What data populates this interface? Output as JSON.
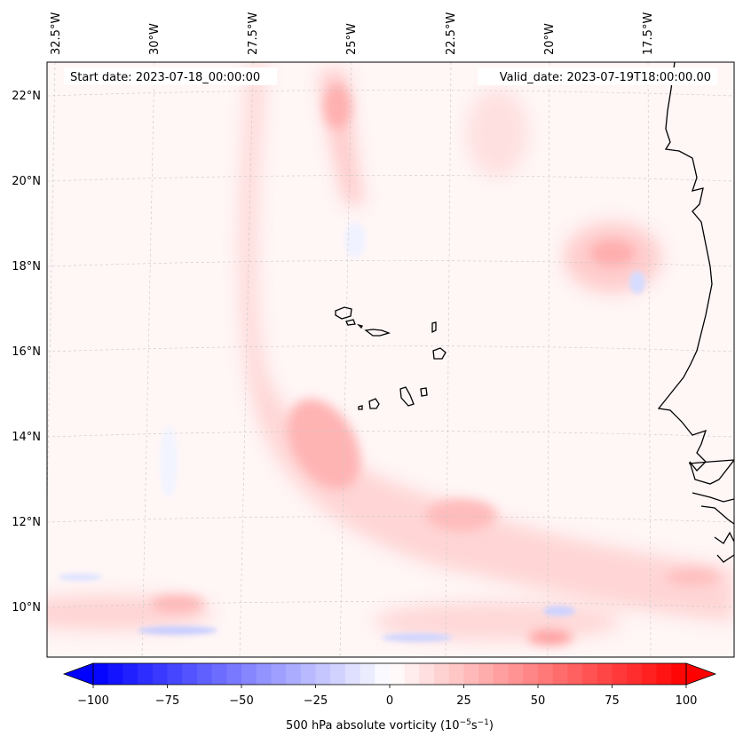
{
  "header": {
    "start_date": "Start date: 2023-07-18_00:00:00",
    "valid_date": "Valid_date: 2023-07-19T18:00:00.00"
  },
  "map": {
    "lon_ticks": [
      "32.5°W",
      "30°W",
      "27.5°W",
      "25°W",
      "22.5°W",
      "20°W",
      "17.5°W"
    ],
    "lat_ticks": [
      "22°N",
      "20°N",
      "18°N",
      "16°N",
      "14°N",
      "12°N",
      "10°N"
    ],
    "region": "Cabo Verde / West Africa coast",
    "islands": [
      "Santo Antão",
      "São Vicente",
      "Santa Luzia",
      "São Nicolau",
      "Sal",
      "Boa Vista",
      "Maio",
      "Santiago",
      "Fogo",
      "Brava"
    ]
  },
  "colorbar": {
    "ticks": [
      "−100",
      "−75",
      "−50",
      "−25",
      "0",
      "25",
      "50",
      "75",
      "100"
    ],
    "label_main": "500 hPa absolute vorticity (10",
    "label_exp1": "−5",
    "label_mid": "s",
    "label_exp2": "−1",
    "label_end": ")",
    "min": -100,
    "max": 100,
    "levels": 40,
    "colors": {
      "low": "#0000ff",
      "mid": "#ffffff",
      "high": "#ff0000"
    }
  }
}
